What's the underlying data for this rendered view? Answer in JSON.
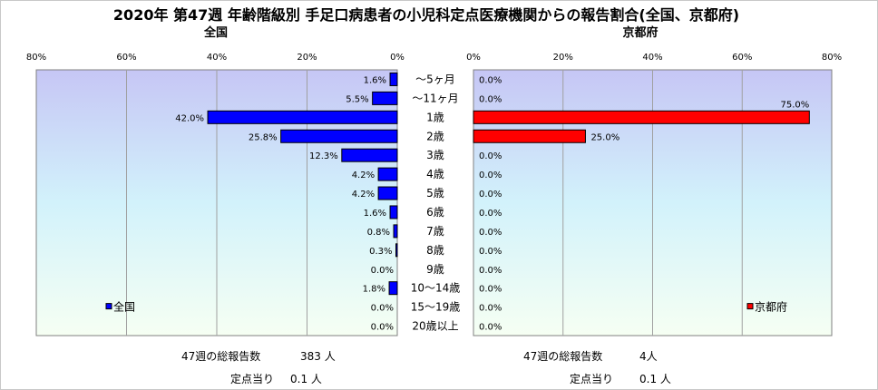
{
  "title": "2020年 第47週 年齢階級別 手足口病患者の小児科定点医療機関からの報告割合(全国、京都府)",
  "chart_data": {
    "type": "bar",
    "categories": [
      "～5ヶ月",
      "～11ヶ月",
      "1歳",
      "2歳",
      "3歳",
      "4歳",
      "5歳",
      "6歳",
      "7歳",
      "8歳",
      "9歳",
      "10～14歳",
      "15～19歳",
      "20歳以上"
    ],
    "xlim": [
      0,
      80
    ],
    "ticks": [
      "0%",
      "20%",
      "40%",
      "60%",
      "80%"
    ],
    "series": [
      {
        "name": "全国",
        "subtitle": "全国",
        "color": "#0000ff",
        "values": [
          1.6,
          5.5,
          42.0,
          25.8,
          12.3,
          4.2,
          4.2,
          1.6,
          0.8,
          0.3,
          0.0,
          1.8,
          0.0,
          0.0
        ],
        "labels": [
          "1.6%",
          "5.5%",
          "42.0%",
          "25.8%",
          "12.3%",
          "4.2%",
          "4.2%",
          "1.6%",
          "0.8%",
          "0.3%",
          "0.0%",
          "1.8%",
          "0.0%",
          "0.0%"
        ]
      },
      {
        "name": "京都府",
        "subtitle": "京都府",
        "color": "#ff0000",
        "values": [
          0.0,
          0.0,
          75.0,
          25.0,
          0.0,
          0.0,
          0.0,
          0.0,
          0.0,
          0.0,
          0.0,
          0.0,
          0.0,
          0.0
        ],
        "labels": [
          "0.0%",
          "0.0%",
          "75.0%",
          "25.0%",
          "0.0%",
          "0.0%",
          "0.0%",
          "0.0%",
          "0.0%",
          "0.0%",
          "0.0%",
          "0.0%",
          "0.0%",
          "0.0%"
        ]
      }
    ],
    "grid": true,
    "legend": "bottom-left / bottom-right"
  },
  "footer": {
    "national": {
      "total_label": "47週の総報告数",
      "total_value": "383 人",
      "per_label": "定点当り",
      "per_value": "0.1 人"
    },
    "kyoto": {
      "total_label": "47週の総報告数",
      "total_value": "4人",
      "per_label": "定点当り",
      "per_value": "0.1 人"
    }
  }
}
